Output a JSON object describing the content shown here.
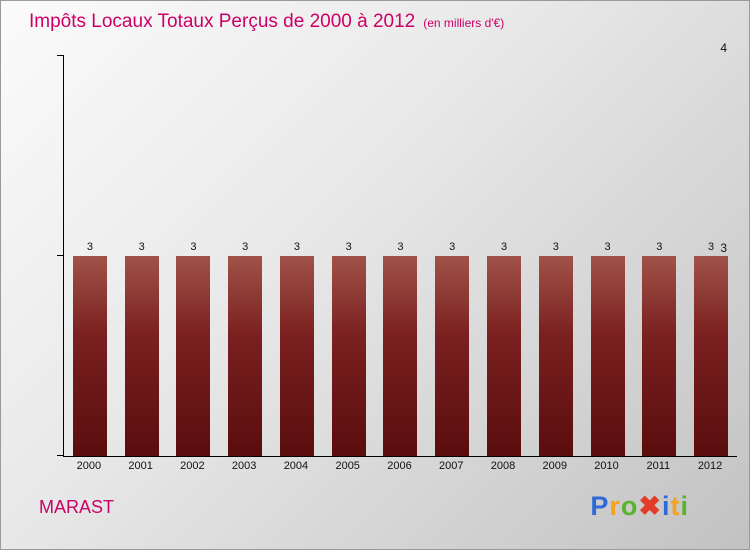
{
  "title": "Impôts Locaux Totaux Perçus de 2000 à 2012",
  "subtitle": "(en milliers d'€)",
  "footer": {
    "name": "MARAST"
  },
  "logo": {
    "letters": [
      {
        "ch": "P",
        "color": "#2f6bd8"
      },
      {
        "ch": "r",
        "color": "#f6a21d"
      },
      {
        "ch": "o",
        "color": "#58b32e"
      },
      {
        "ch": "✖",
        "color": "#e23d28"
      },
      {
        "ch": "i",
        "color": "#2f6bd8"
      },
      {
        "ch": "t",
        "color": "#f6a21d"
      },
      {
        "ch": "i",
        "color": "#58b32e"
      }
    ]
  },
  "colors": {
    "title": "#cc0066",
    "bar_top": "#a05248",
    "bar_bottom": "#5a0d0d",
    "axis": "#000000",
    "background_top": "#fbfbfb",
    "background_bottom": "#c2c2c2"
  },
  "chart_data": {
    "type": "bar",
    "title": "Impôts Locaux Totaux Perçus de 2000 à 2012",
    "subtitle": "(en milliers d'€)",
    "categories": [
      "2000",
      "2001",
      "2002",
      "2003",
      "2004",
      "2005",
      "2006",
      "2007",
      "2008",
      "2009",
      "2010",
      "2011",
      "2012"
    ],
    "values": [
      3,
      3,
      3,
      3,
      3,
      3,
      3,
      3,
      3,
      3,
      3,
      3,
      3
    ],
    "xlabel": "",
    "ylabel": "",
    "ylim": [
      2,
      4
    ],
    "yticks": [
      2,
      3,
      4
    ],
    "grid": false,
    "legend": false,
    "value_labels": true
  }
}
